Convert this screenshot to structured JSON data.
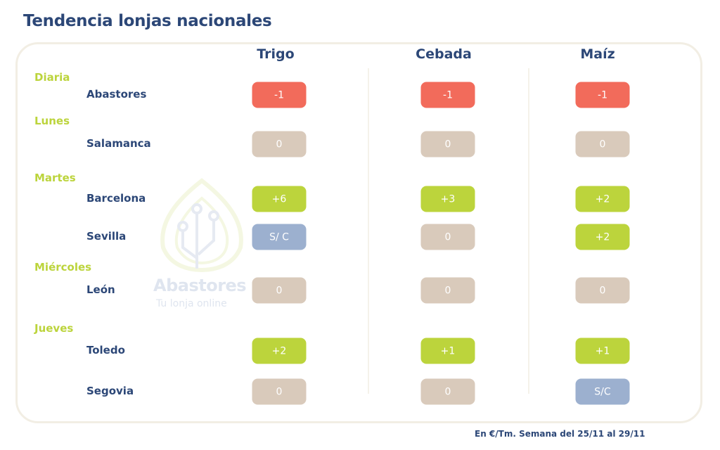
{
  "title": "Tendencia lonjas nacionales",
  "watermark": {
    "brand": "Abastores",
    "tagline": "Tu lonja online"
  },
  "columns": [
    "Trigo",
    "Cebada",
    "Maíz"
  ],
  "colors": {
    "down": "#f26b5b",
    "flat": "#d9cabb",
    "up": "#bcd43c",
    "none": "#9cb0cf",
    "navy": "#2c4777",
    "day": "#bcd43c"
  },
  "groups": [
    {
      "day": "Diaria",
      "markets": [
        {
          "name": "Abastores",
          "values": [
            {
              "v": "-1",
              "t": "down"
            },
            {
              "v": "-1",
              "t": "down"
            },
            {
              "v": "-1",
              "t": "down"
            }
          ]
        }
      ]
    },
    {
      "day": "Lunes",
      "markets": [
        {
          "name": "Salamanca",
          "values": [
            {
              "v": "0",
              "t": "flat"
            },
            {
              "v": "0",
              "t": "flat"
            },
            {
              "v": "0",
              "t": "flat"
            }
          ]
        }
      ]
    },
    {
      "day": "Martes",
      "markets": [
        {
          "name": "Barcelona",
          "values": [
            {
              "v": "+6",
              "t": "up"
            },
            {
              "v": "+3",
              "t": "up"
            },
            {
              "v": "+2",
              "t": "up"
            }
          ]
        },
        {
          "name": "Sevilla",
          "values": [
            {
              "v": "S/ C",
              "t": "none"
            },
            {
              "v": "0",
              "t": "flat"
            },
            {
              "v": "+2",
              "t": "up"
            }
          ]
        }
      ]
    },
    {
      "day": "Miércoles",
      "markets": [
        {
          "name": "León",
          "values": [
            {
              "v": "0",
              "t": "flat"
            },
            {
              "v": "0",
              "t": "flat"
            },
            {
              "v": "0",
              "t": "flat"
            }
          ]
        }
      ]
    },
    {
      "day": "Jueves",
      "markets": [
        {
          "name": "Toledo",
          "values": [
            {
              "v": "+2",
              "t": "up"
            },
            {
              "v": "+1",
              "t": "up"
            },
            {
              "v": "+1",
              "t": "up"
            }
          ]
        },
        {
          "name": "Segovia",
          "values": [
            {
              "v": "0",
              "t": "flat"
            },
            {
              "v": "0",
              "t": "flat"
            },
            {
              "v": "S/C",
              "t": "none"
            }
          ]
        }
      ]
    }
  ],
  "footer": "En €/Tm. Semana del 25/11 al 29/11"
}
